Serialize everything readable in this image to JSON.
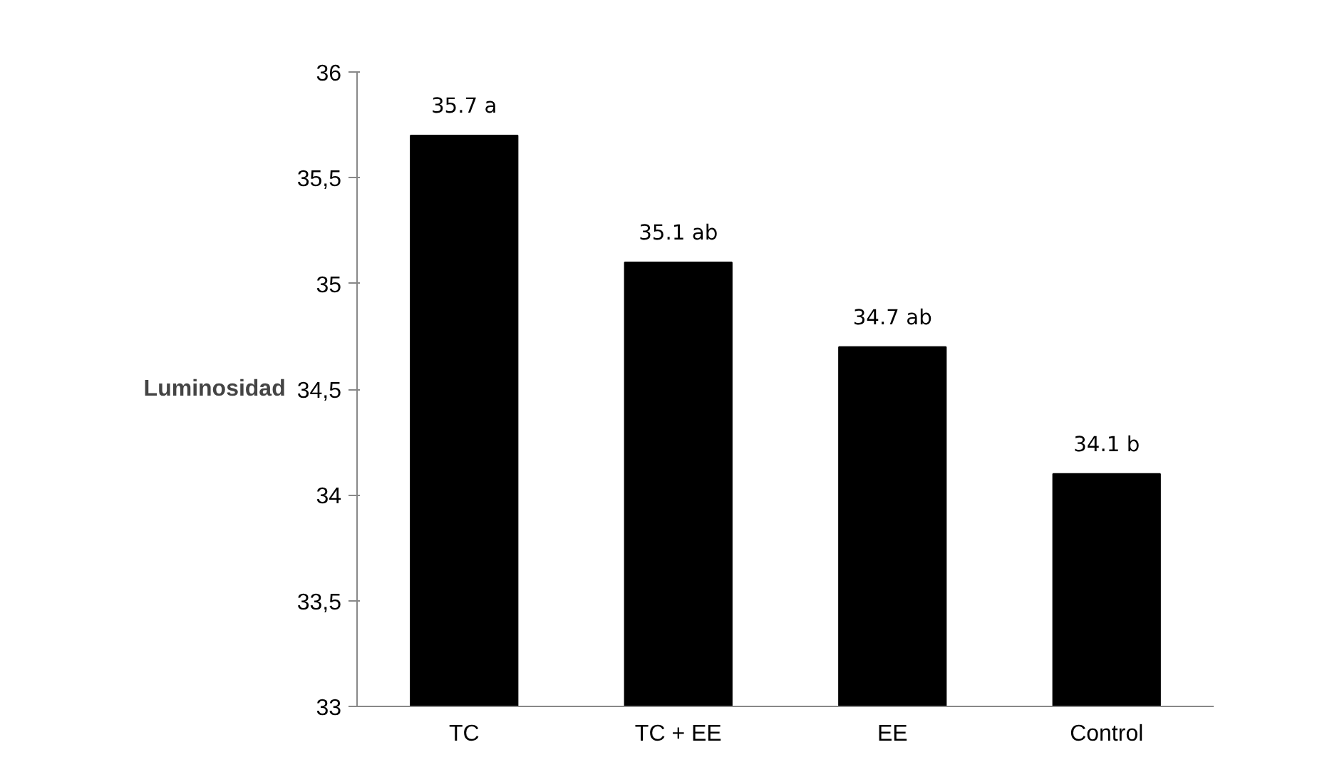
{
  "chart_data": {
    "type": "bar",
    "ylabel": "Luminosidad",
    "categories": [
      "TC",
      "TC + EE",
      "EE",
      "Control"
    ],
    "values": [
      35.7,
      35.1,
      34.7,
      34.1
    ],
    "color": "#000000",
    "value_labels": [
      "35.7 a",
      "35.1 ab",
      "34.7 ab",
      "34.1 b"
    ],
    "ylim": [
      33,
      36
    ],
    "yticks": [
      33,
      {
        "value": 33.5,
        "label": "33,5"
      },
      34,
      {
        "value": 34.5,
        "label": "34,5"
      },
      35,
      {
        "value": 35.5,
        "label": "35,5"
      },
      36
    ],
    "grid": false
  }
}
